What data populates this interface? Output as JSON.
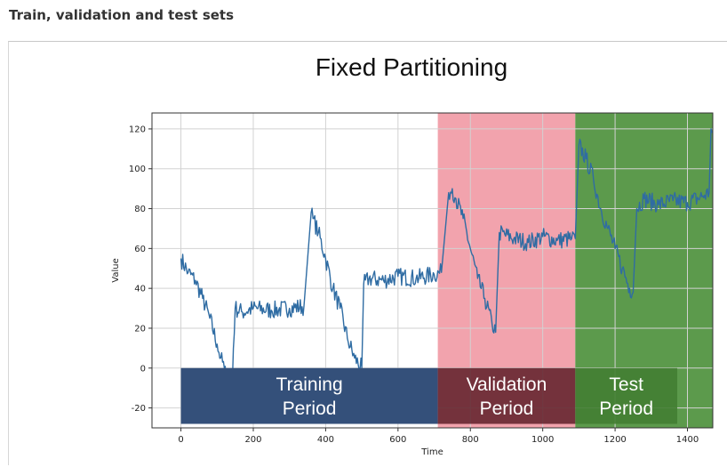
{
  "page": {
    "heading": "Train, validation and test sets"
  },
  "slide": {
    "title": "Fixed Partitioning"
  },
  "colors": {
    "series": "#2f6ca3",
    "validation_band": "#f2a3ad",
    "test_band": "#5c9a4c",
    "training_box": "#34507a",
    "validation_box": "#5e1f28",
    "test_box": "#437e33",
    "box_text": "#ffffff"
  },
  "chart_data": {
    "type": "line",
    "title": "",
    "xlabel": "Time",
    "ylabel": "Value",
    "xlim": [
      -80,
      1470
    ],
    "ylim": [
      -30,
      128
    ],
    "xticks": [
      0,
      200,
      400,
      600,
      800,
      1000,
      1200,
      1400
    ],
    "yticks": [
      -20,
      0,
      20,
      40,
      60,
      80,
      100,
      120
    ],
    "grid": true,
    "regions": [
      {
        "name": "training",
        "x_start": 0,
        "x_end": 710,
        "line1": "Training",
        "line2": "Period"
      },
      {
        "name": "validation",
        "x_start": 710,
        "x_end": 1090,
        "line1": "Validation",
        "line2": "Period"
      },
      {
        "name": "test",
        "x_start": 1090,
        "x_end": 1470,
        "line1": "Test",
        "line2": "Period"
      }
    ],
    "label_box_y": [
      -28,
      0
    ],
    "series": [
      {
        "x": [
          0,
          20,
          40,
          60,
          80,
          100,
          110,
          120,
          130,
          140,
          145,
          150,
          170,
          200,
          250,
          300,
          340,
          360,
          365,
          380,
          400,
          420,
          440,
          460,
          480,
          500,
          505,
          520,
          560,
          600,
          650,
          700,
          720,
          740,
          750,
          760,
          780,
          800,
          820,
          840,
          860,
          870,
          880,
          920,
          960,
          1000,
          1040,
          1080,
          1090,
          1100,
          1120,
          1140,
          1160,
          1180,
          1200,
          1220,
          1240,
          1250,
          1260,
          1280,
          1320,
          1360,
          1400,
          1440,
          1460,
          1465,
          1468
        ],
        "y": [
          55,
          48,
          44,
          35,
          25,
          12,
          5,
          0,
          -10,
          -20,
          10,
          30,
          28,
          30,
          29,
          30,
          31,
          78,
          75,
          68,
          55,
          40,
          30,
          15,
          5,
          0,
          42,
          45,
          44,
          46,
          45,
          47,
          48,
          88,
          90,
          85,
          75,
          60,
          45,
          35,
          22,
          18,
          68,
          65,
          63,
          66,
          64,
          65,
          65,
          112,
          105,
          95,
          80,
          70,
          60,
          50,
          40,
          38,
          80,
          85,
          82,
          84,
          83,
          86,
          88,
          120,
          118
        ]
      }
    ]
  }
}
